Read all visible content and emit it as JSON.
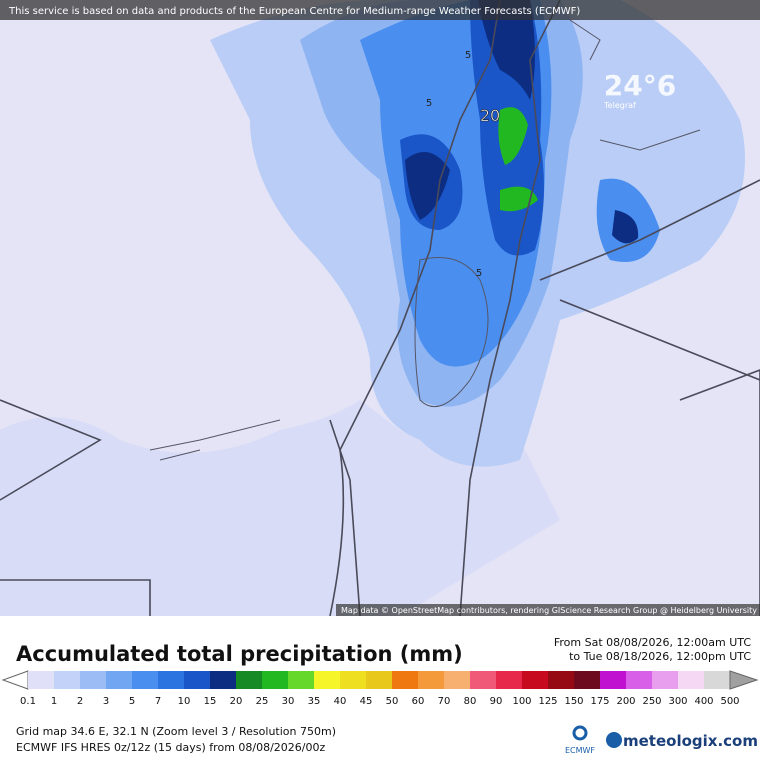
{
  "header": {
    "notice": "This service is based on data and products of the European Centre for Medium-range Weather Forecasts (ECMWF)"
  },
  "map": {
    "labels": [
      "20",
      "5",
      "5",
      "5"
    ],
    "watermark": "24°6",
    "watermark_sub": "Telegraf",
    "attribution": "Map data © OpenStreetMap contributors, rendering GIScience Research Group @ Heidelberg University"
  },
  "legend": {
    "title": "Accumulated total precipitation (mm)",
    "period_from": "From Sat 08/08/2026, 12:00am UTC",
    "period_to": "to Tue 08/18/2026, 12:00pm UTC",
    "labels": [
      "0.1",
      "1",
      "2",
      "3",
      "5",
      "7",
      "10",
      "15",
      "20",
      "25",
      "30",
      "35",
      "40",
      "45",
      "50",
      "60",
      "70",
      "80",
      "90",
      "100",
      "125",
      "150",
      "175",
      "200",
      "250",
      "300",
      "400",
      "500"
    ],
    "colors": [
      "#e0e0f8",
      "#c2d2f8",
      "#9cbcf5",
      "#70a6f2",
      "#4a8ff0",
      "#2c74e0",
      "#1a56c8",
      "#0c2d82",
      "#168a25",
      "#22b822",
      "#66d82a",
      "#f5f52a",
      "#eee020",
      "#e8c81a",
      "#f07810",
      "#f59a3a",
      "#f8b070",
      "#f05a78",
      "#e8284a",
      "#c80a1e",
      "#960a14",
      "#6e0a1e",
      "#c010d0",
      "#d860e8",
      "#e8a0ee",
      "#f4d8f4",
      "#d8d8d8"
    ],
    "over_color": "#a0a0a0"
  },
  "footer": {
    "grid": "Grid map 34.6 E, 32.1 N (Zoom level 3 / Resolution 750m)",
    "model": "ECMWF IFS HRES 0z/12z (15 days)  from  08/08/2026/00z",
    "ecmwf": "ECMWF",
    "brand": "meteologix.com"
  }
}
